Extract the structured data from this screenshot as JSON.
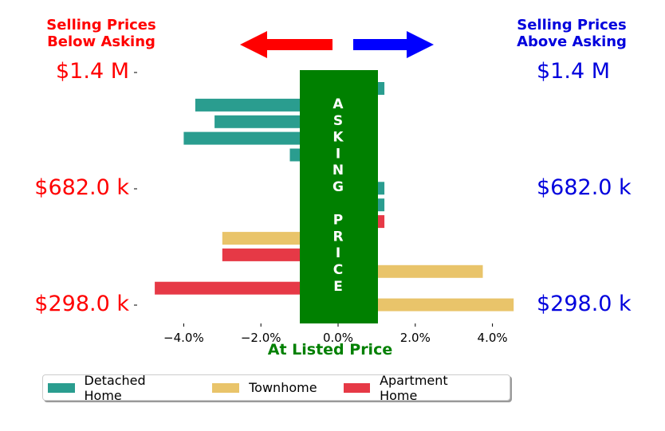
{
  "header": {
    "left_line1": "Selling Prices",
    "left_line2": "Below Asking",
    "right_line1": "Selling Prices",
    "right_line2": "Above Asking"
  },
  "price_labels": {
    "top": "$1.4 M",
    "middle": "$682.0 k",
    "bottom": "$298.0 k"
  },
  "asking_price_letters": [
    "A",
    "S",
    "K",
    "I",
    "N",
    "G",
    "",
    "P",
    "R",
    "I",
    "C",
    "E"
  ],
  "xlabel": "At Listed Price",
  "colors": {
    "detached": "#2a9d8f",
    "townhome": "#e9c46a",
    "apartment": "#e63946",
    "band": "#008000",
    "below": "#ff0000",
    "above": "#0000dd",
    "arrow_left": "#ff0000",
    "arrow_right": "#0000ff"
  },
  "legend": [
    {
      "label": "Detached Home",
      "color": "#2a9d8f"
    },
    {
      "label": "Townhome",
      "color": "#e9c46a"
    },
    {
      "label": "Apartment Home",
      "color": "#e63946"
    }
  ],
  "chart_data": {
    "type": "bar",
    "orientation": "horizontal",
    "xlabel": "At Listed Price",
    "xlim": [
      -5.0,
      4.6
    ],
    "x_ticks": [
      -4,
      -2,
      0,
      2,
      4
    ],
    "x_tick_labels": [
      "−4.0%",
      "−2.0%",
      "0.0%",
      "2.0%",
      "4.0%"
    ],
    "y_tick_labels": [
      "$1.4 M",
      "$682.0 k",
      "$298.0 k"
    ],
    "grid": false,
    "legend_position": "bottom",
    "bars": [
      {
        "type": "Detached Home",
        "pct": 1.2
      },
      {
        "type": "Detached Home",
        "pct": -3.7
      },
      {
        "type": "Detached Home",
        "pct": -3.2
      },
      {
        "type": "Detached Home",
        "pct": -4.0
      },
      {
        "type": "Detached Home",
        "pct": -1.25
      },
      {
        "type": "Townhome",
        "pct": 1.0
      },
      {
        "type": "Detached Home",
        "pct": 1.2
      },
      {
        "type": "Detached Home",
        "pct": 1.2
      },
      {
        "type": "Apartment Home",
        "pct": 1.2
      },
      {
        "type": "Townhome",
        "pct": -3.0
      },
      {
        "type": "Apartment Home",
        "pct": -3.0
      },
      {
        "type": "Townhome",
        "pct": 3.75
      },
      {
        "type": "Apartment Home",
        "pct": -4.75
      },
      {
        "type": "Townhome",
        "pct": 4.55
      }
    ]
  }
}
